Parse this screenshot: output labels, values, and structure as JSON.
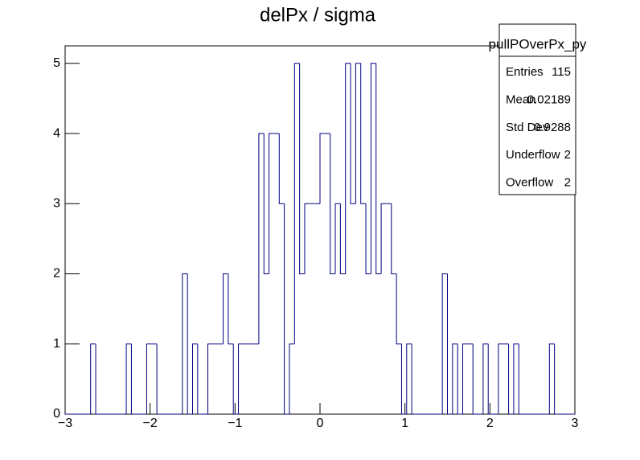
{
  "chart_data": {
    "type": "histogram",
    "title": "delPx / sigma",
    "bins": [
      -3,
      -2.94,
      -2.88,
      -2.82,
      -2.76,
      -2.7,
      -2.64,
      -2.58,
      -2.52,
      -2.46,
      -2.4,
      -2.34,
      -2.28,
      -2.22,
      -2.16,
      -2.1,
      -2.04,
      -1.98,
      -1.92,
      -1.86,
      -1.8,
      -1.74,
      -1.68,
      -1.62,
      -1.56,
      -1.5,
      -1.44,
      -1.38,
      -1.32,
      -1.26,
      -1.2,
      -1.14,
      -1.08,
      -1.02,
      -0.96,
      -0.9,
      -0.84,
      -0.78,
      -0.72,
      -0.66,
      -0.6,
      -0.54,
      -0.48,
      -0.42,
      -0.36,
      -0.3,
      -0.24,
      -0.18,
      -0.12,
      -0.06,
      0,
      0.06,
      0.12,
      0.18,
      0.24,
      0.3,
      0.36,
      0.42,
      0.48,
      0.54,
      0.6,
      0.66,
      0.72,
      0.78,
      0.84,
      0.9,
      0.96,
      1.02,
      1.08,
      1.14,
      1.2,
      1.26,
      1.32,
      1.38,
      1.44,
      1.5,
      1.56,
      1.62,
      1.68,
      1.74,
      1.8,
      1.86,
      1.92,
      1.98,
      2.04,
      2.1,
      2.16,
      2.22,
      2.28,
      2.34,
      2.4,
      2.46,
      2.52,
      2.58,
      2.64,
      2.7,
      2.76,
      2.82,
      2.88,
      2.94,
      3
    ],
    "values": [
      0,
      0,
      0,
      0,
      0,
      1,
      0,
      0,
      0,
      0,
      0,
      0,
      1,
      0,
      0,
      0,
      1,
      1,
      0,
      0,
      0,
      0,
      0,
      2,
      0,
      1,
      0,
      0,
      1,
      1,
      1,
      2,
      1,
      0,
      1,
      1,
      1,
      1,
      4,
      2,
      4,
      4,
      3,
      0,
      1,
      5,
      2,
      3,
      3,
      3,
      4,
      4,
      2,
      3,
      2,
      5,
      3,
      5,
      3,
      2,
      5,
      2,
      3,
      3,
      2,
      1,
      0,
      1,
      0,
      0,
      0,
      0,
      0,
      0,
      2,
      0,
      1,
      0,
      1,
      1,
      0,
      0,
      1,
      0,
      0,
      1,
      1,
      0,
      1,
      0,
      0,
      0,
      0,
      0,
      0,
      1,
      0,
      0,
      0,
      0
    ],
    "color": "#000080",
    "xlim": [
      -3,
      3
    ],
    "xticks": [
      {
        "value": -3,
        "label": "−3"
      },
      {
        "value": -2,
        "label": "−2"
      },
      {
        "value": -1,
        "label": "−1"
      },
      0,
      1,
      2,
      3
    ],
    "ylim": [
      0,
      5.25
    ],
    "yticks": [
      0,
      1,
      2,
      3,
      4,
      5
    ],
    "stats": {
      "title": "pullPOverPx_py",
      "rows": [
        {
          "label": "Entries",
          "value": 115
        },
        {
          "label": "Mean",
          "value": 0.02189
        },
        {
          "label": "Std Dev",
          "value": 0.9288
        },
        {
          "label": "Underflow",
          "value": 2
        },
        {
          "label": "Overflow",
          "value": 2
        }
      ]
    }
  }
}
